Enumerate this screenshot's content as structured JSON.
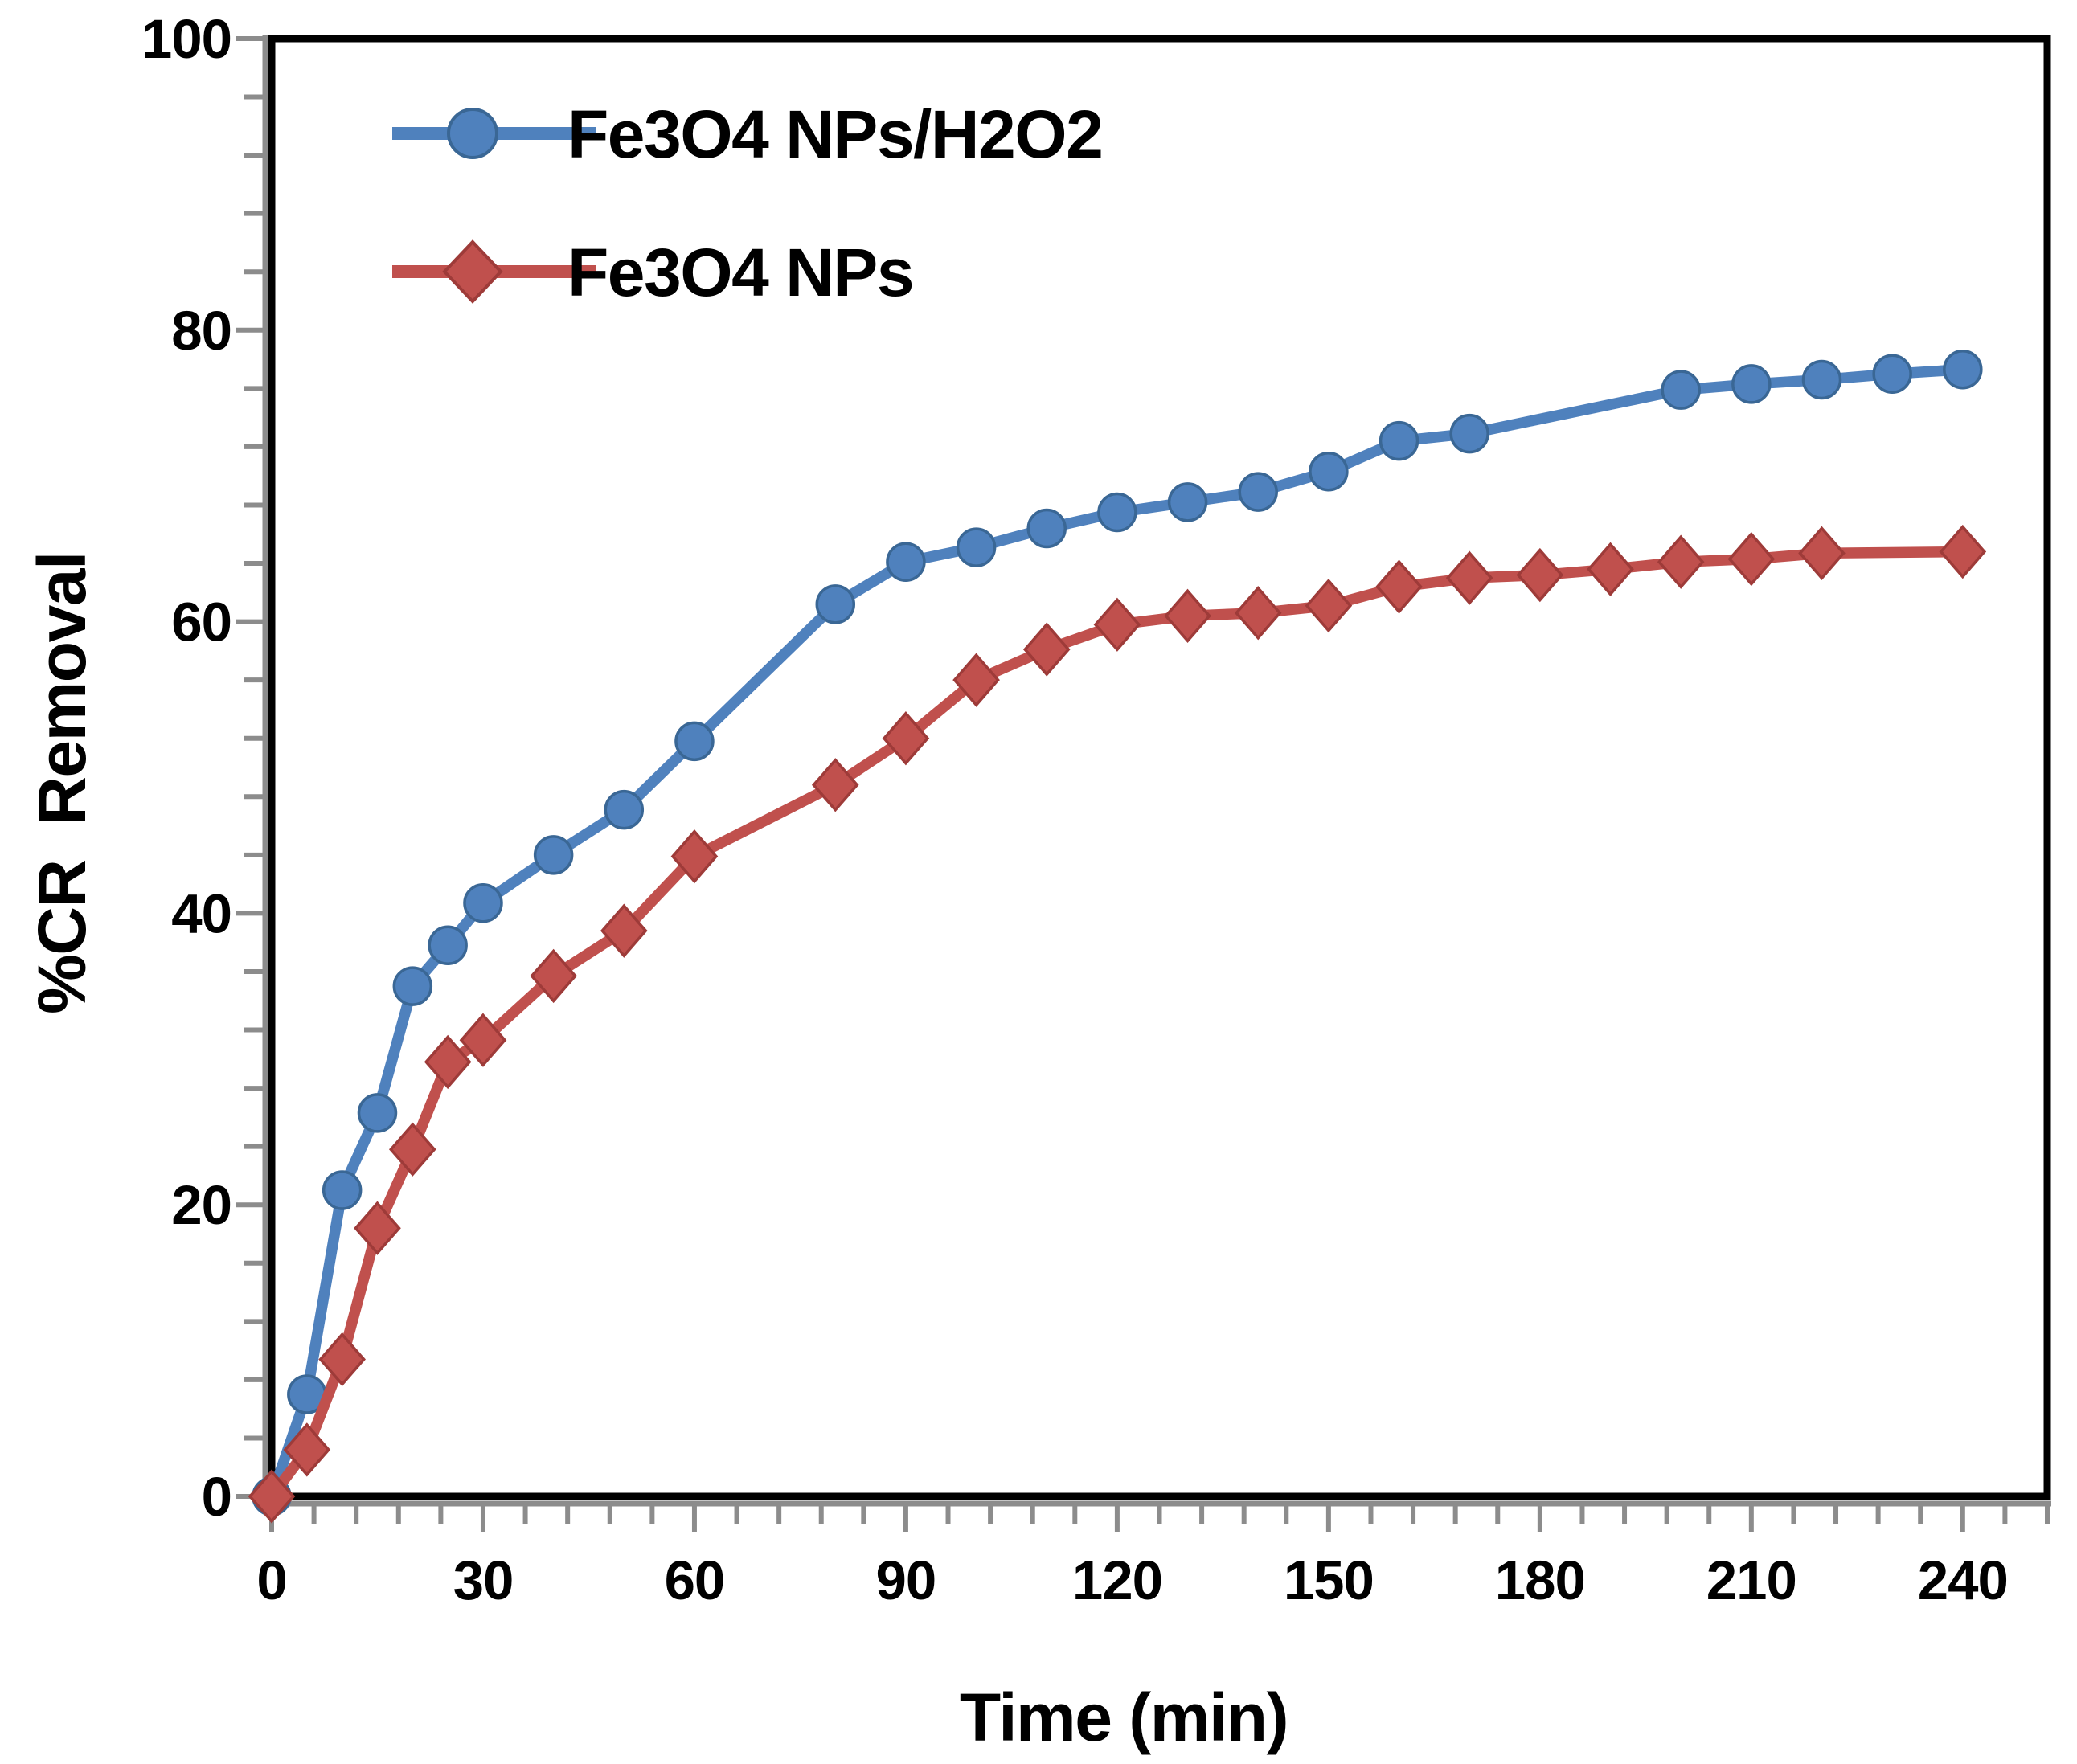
{
  "chart_data": {
    "type": "line",
    "title": "",
    "xlabel": "Time (min)",
    "ylabel": "%CR  Removal",
    "xlim": [
      0,
      252
    ],
    "ylim": [
      0,
      100
    ],
    "x_ticks": [
      0,
      30,
      60,
      90,
      120,
      150,
      180,
      210,
      240
    ],
    "y_ticks": [
      0,
      20,
      40,
      60,
      80,
      100
    ],
    "x_minor_unit": 6,
    "y_minor_unit": 4,
    "grid": false,
    "legend_position": "inside-top-left",
    "axis_color": "#000000",
    "tick_color": "#8C8C8C",
    "text_color": "#000000",
    "background_color": "#FFFFFF",
    "series": [
      {
        "name": "Fe3O4 NPs/H2O2",
        "color": "#4F81BD",
        "edge_color": "#3A6795",
        "marker": "circle",
        "points": [
          [
            0,
            0
          ],
          [
            5,
            7
          ],
          [
            10,
            21
          ],
          [
            15,
            26.3
          ],
          [
            20,
            35
          ],
          [
            25,
            37.8
          ],
          [
            30,
            40.7
          ],
          [
            40,
            44
          ],
          [
            50,
            47.1
          ],
          [
            60,
            51.8
          ],
          [
            80,
            61.2
          ],
          [
            90,
            64.1
          ],
          [
            100,
            65.1
          ],
          [
            110,
            66.4
          ],
          [
            120,
            67.5
          ],
          [
            130,
            68.2
          ],
          [
            140,
            68.9
          ],
          [
            150,
            70.3
          ],
          [
            160,
            72.4
          ],
          [
            170,
            72.9
          ],
          [
            200,
            75.9
          ],
          [
            210,
            76.3
          ],
          [
            220,
            76.6
          ],
          [
            230,
            77
          ],
          [
            240,
            77.3
          ]
        ]
      },
      {
        "name": "Fe3O4 NPs",
        "color": "#C0504D",
        "edge_color": "#9E3B39",
        "marker": "diamond",
        "points": [
          [
            0,
            0
          ],
          [
            5,
            3.2
          ],
          [
            10,
            9.4
          ],
          [
            15,
            18.4
          ],
          [
            20,
            23.8
          ],
          [
            25,
            29.8
          ],
          [
            30,
            31.3
          ],
          [
            40,
            35.7
          ],
          [
            50,
            38.8
          ],
          [
            60,
            43.9
          ],
          [
            80,
            48.8
          ],
          [
            90,
            52
          ],
          [
            100,
            56
          ],
          [
            110,
            58.1
          ],
          [
            120,
            59.8
          ],
          [
            130,
            60.4
          ],
          [
            140,
            60.6
          ],
          [
            150,
            61.1
          ],
          [
            160,
            62.4
          ],
          [
            170,
            63
          ],
          [
            180,
            63.2
          ],
          [
            190,
            63.6
          ],
          [
            200,
            64.1
          ],
          [
            210,
            64.3
          ],
          [
            220,
            64.7
          ],
          [
            240,
            64.8
          ]
        ]
      }
    ]
  }
}
